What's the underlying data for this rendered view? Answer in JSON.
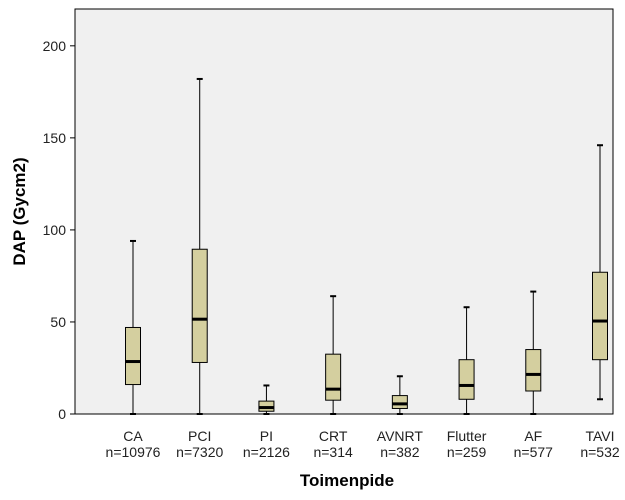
{
  "chart_data": {
    "type": "boxplot",
    "title": "",
    "xlabel": "Toimenpide",
    "ylabel": "DAP (Gycm2)",
    "ylim": [
      0,
      220
    ],
    "yticks": [
      0,
      50,
      100,
      150,
      200
    ],
    "grid": false,
    "colors": {
      "plot_bg": "#f0f0f0",
      "box_fill": "#d4cf9f",
      "line": "#000000"
    },
    "categories": [
      {
        "name": "CA",
        "n_label": "n=10976",
        "whisker_low": 0,
        "q1": 16,
        "median": 28.5,
        "q3": 47,
        "whisker_high": 94
      },
      {
        "name": "PCI",
        "n_label": "n=7320",
        "whisker_low": 0,
        "q1": 28,
        "median": 51.5,
        "q3": 89.5,
        "whisker_high": 182
      },
      {
        "name": "PI",
        "n_label": "n=2126",
        "whisker_low": 0,
        "q1": 1.5,
        "median": 3.5,
        "q3": 7,
        "whisker_high": 15.5
      },
      {
        "name": "CRT",
        "n_label": "n=314",
        "whisker_low": 0,
        "q1": 7.5,
        "median": 13.5,
        "q3": 32.5,
        "whisker_high": 64
      },
      {
        "name": "AVNRT",
        "n_label": "n=382",
        "whisker_low": 0,
        "q1": 3,
        "median": 5.5,
        "q3": 10,
        "whisker_high": 20.5
      },
      {
        "name": "Flutter",
        "n_label": "n=259",
        "whisker_low": 0,
        "q1": 8,
        "median": 15.5,
        "q3": 29.5,
        "whisker_high": 58
      },
      {
        "name": "AF",
        "n_label": "n=577",
        "whisker_low": 0,
        "q1": 12.5,
        "median": 21.5,
        "q3": 35,
        "whisker_high": 66.5
      },
      {
        "name": "TAVI",
        "n_label": "n=532",
        "whisker_low": 8,
        "q1": 29.5,
        "median": 50.5,
        "q3": 77,
        "whisker_high": 146
      }
    ]
  }
}
